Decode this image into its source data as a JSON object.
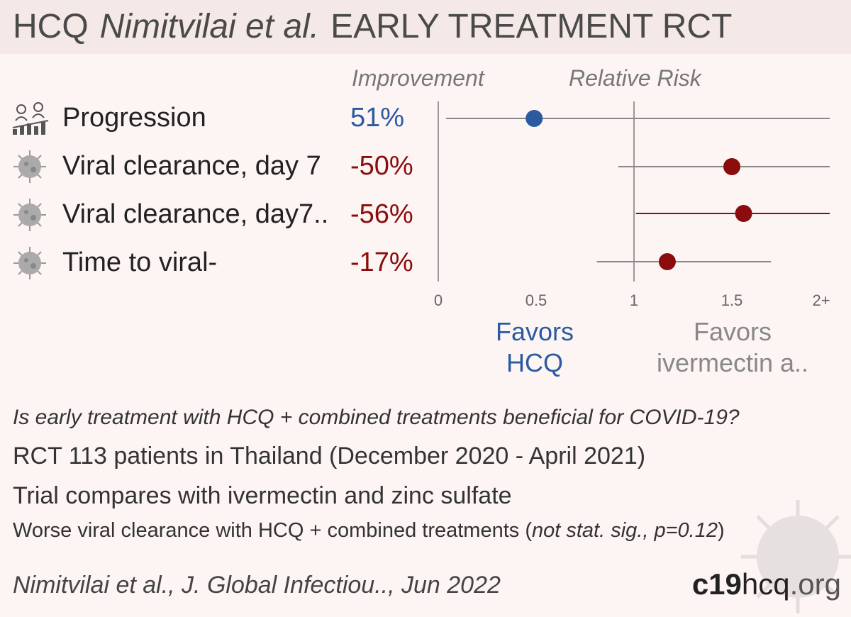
{
  "header": {
    "title_pre": "HCQ",
    "title_italic": "Nimitvilai et al.",
    "title_post": "EARLY TREATMENT  RCT"
  },
  "columns": {
    "improvement": "Improvement",
    "relative_risk": "Relative Risk"
  },
  "rows": [
    {
      "icon": "progression-icon",
      "label": "Progression",
      "improvement": "51%",
      "color": "#2b5aa0"
    },
    {
      "icon": "virus-icon",
      "label": "Viral clearance, day 7",
      "improvement": "-50%",
      "color": "#8a0c0c"
    },
    {
      "icon": "virus-icon",
      "label": "Viral clearance, day7..",
      "improvement": "-56%",
      "color": "#8a0c0c"
    },
    {
      "icon": "virus-icon",
      "label": "Time to viral-",
      "improvement": "-17%",
      "color": "#8a0c0c"
    }
  ],
  "chart_data": {
    "type": "scatter",
    "title": "Relative Risk",
    "xlim": [
      0,
      2
    ],
    "ticks": [
      {
        "value": 0,
        "label": "0"
      },
      {
        "value": 0.5,
        "label": "0.5"
      },
      {
        "value": 1,
        "label": "1"
      },
      {
        "value": 1.5,
        "label": "1.5"
      },
      {
        "value": 2,
        "label": "2+"
      }
    ],
    "points": [
      {
        "name": "Progression",
        "rr": 0.49,
        "lo": 0.04,
        "hi": 2.0,
        "color": "#2b5aa0"
      },
      {
        "name": "Viral clearance, day 7",
        "rr": 1.5,
        "lo": 0.92,
        "hi": 2.0,
        "color": "#8a0c0c"
      },
      {
        "name": "Viral clearance, day7..",
        "rr": 1.56,
        "lo": 1.01,
        "hi": 2.0,
        "color": "#8a0c0c"
      },
      {
        "name": "Time to viral-",
        "rr": 1.17,
        "lo": 0.81,
        "hi": 1.7,
        "color": "#8a0c0c"
      }
    ],
    "null_line": 1
  },
  "favors": {
    "left": [
      "Favors",
      "HCQ"
    ],
    "right": [
      "Favors",
      "ivermectin a.."
    ]
  },
  "info": {
    "question": "Is early treatment with HCQ + combined treatments beneficial for COVID-19?",
    "line1": "RCT 113 patients in Thailand (December 2020 - April 2021)",
    "line2": "Trial compares with ivermectin and zinc sulfate",
    "line3_main": "Worse viral clearance with HCQ + combined treatments (",
    "line3_italic": "not stat. sig., p=0.12",
    "line3_end": ")"
  },
  "footer": {
    "citation": "Nimitvilai et al., J. Global Infectiou.., Jun 2022",
    "brand_a": "c19",
    "brand_b": "hcq",
    "brand_c": ".org"
  }
}
